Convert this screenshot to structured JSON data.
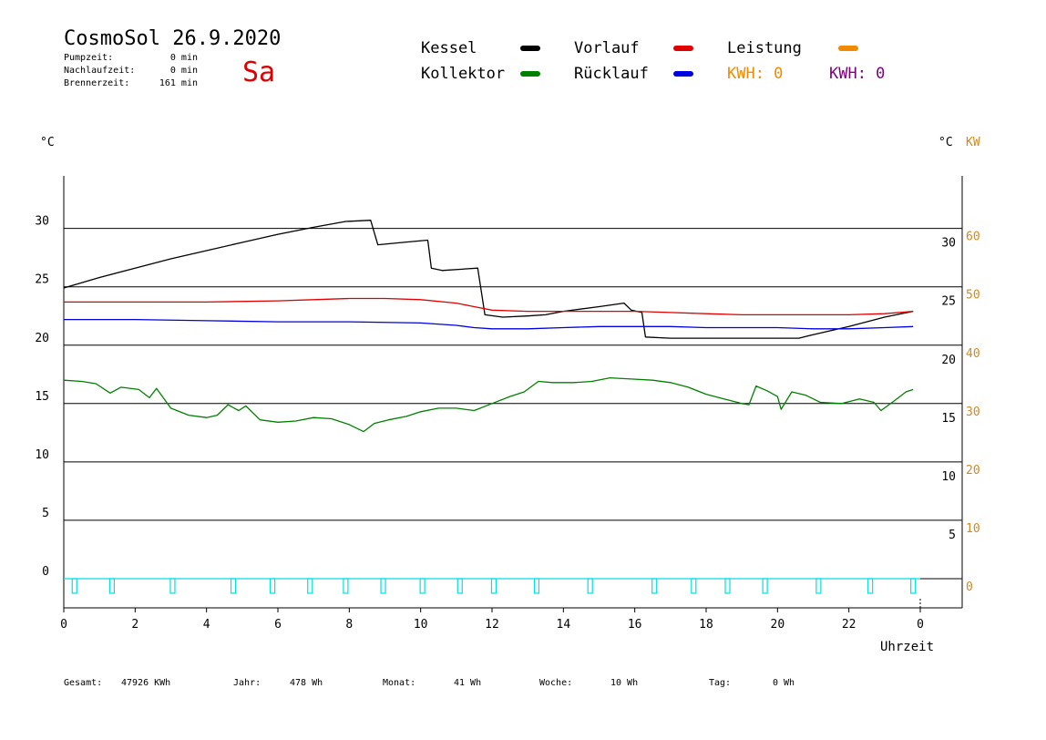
{
  "header": {
    "title": "CosmoSol 26.9.2020",
    "day": "Sa",
    "stats": [
      {
        "label": "Pumpzeit:",
        "value": "0 min"
      },
      {
        "label": "Nachlaufzeit:",
        "value": "0 min"
      },
      {
        "label": "Brennerzeit:",
        "value": "161 min"
      }
    ]
  },
  "legend": {
    "kessel": "Kessel",
    "vorlauf": "Vorlauf",
    "leistung": "Leistung",
    "kollektor": "Kollektor",
    "ruecklauf": "Rücklauf",
    "kwh1": "KWH: 0",
    "kwh2": "KWH: 0"
  },
  "colors": {
    "kessel": "#000000",
    "vorlauf": "#e00000",
    "leistung": "#f08a00",
    "kollektor": "#008000",
    "ruecklauf": "#0000e0",
    "pump": "#00e0e0",
    "kwh2": "#800080"
  },
  "footer": [
    {
      "label": "Gesamt:",
      "value": "47926 KWh"
    },
    {
      "label": "Jahr:",
      "value": "478 Wh"
    },
    {
      "label": "Monat:",
      "value": "41 Wh"
    },
    {
      "label": "Woche:",
      "value": "10 Wh"
    },
    {
      "label": "Tag:",
      "value": "0 Wh"
    }
  ],
  "chart_data": {
    "type": "line",
    "xlabel": "Uhrzeit",
    "ylabel_left": "°C",
    "ylabel_right_temp": "°C",
    "ylabel_right_power": "KW",
    "xlim": [
      0,
      24
    ],
    "ylim": [
      -2.5,
      34.5
    ],
    "x_ticks": [
      "0",
      "2",
      "4",
      "6",
      "8",
      "10",
      "12",
      "14",
      "16",
      "18",
      "20",
      "22",
      "0"
    ],
    "y_ticks_left": [
      "0",
      "5",
      "10",
      "15",
      "20",
      "25",
      "30"
    ],
    "y_ticks_right_temp": [
      "5",
      "10",
      "15",
      "20",
      "25",
      "30"
    ],
    "y_ticks_right_power": [
      "0",
      "10",
      "20",
      "30",
      "40",
      "50",
      "60"
    ],
    "grid": "horizontal",
    "series": [
      {
        "name": "Kessel",
        "points": [
          [
            0,
            24.9
          ],
          [
            1,
            25.8
          ],
          [
            2,
            26.6
          ],
          [
            3,
            27.4
          ],
          [
            4,
            28.1
          ],
          [
            5,
            28.8
          ],
          [
            6,
            29.5
          ],
          [
            7,
            30.1
          ],
          [
            7.9,
            30.6
          ],
          [
            8.6,
            30.7
          ],
          [
            8.8,
            28.6
          ],
          [
            9.5,
            28.8
          ],
          [
            10.2,
            29.0
          ],
          [
            10.3,
            26.6
          ],
          [
            10.6,
            26.4
          ],
          [
            11.6,
            26.6
          ],
          [
            11.8,
            22.6
          ],
          [
            12.3,
            22.4
          ],
          [
            13,
            22.5
          ],
          [
            13.5,
            22.6
          ],
          [
            14,
            22.9
          ],
          [
            15,
            23.3
          ],
          [
            15.7,
            23.6
          ],
          [
            15.9,
            23.0
          ],
          [
            16.2,
            22.8
          ],
          [
            16.3,
            20.7
          ],
          [
            17,
            20.6
          ],
          [
            18,
            20.6
          ],
          [
            19,
            20.6
          ],
          [
            20,
            20.6
          ],
          [
            20.6,
            20.6
          ],
          [
            21,
            20.9
          ],
          [
            22,
            21.6
          ],
          [
            23,
            22.4
          ],
          [
            23.8,
            22.9
          ]
        ]
      },
      {
        "name": "Vorlauf",
        "points": [
          [
            0,
            23.7
          ],
          [
            2,
            23.7
          ],
          [
            4,
            23.7
          ],
          [
            6,
            23.8
          ],
          [
            7,
            23.9
          ],
          [
            8,
            24.0
          ],
          [
            9,
            24.0
          ],
          [
            10,
            23.9
          ],
          [
            11,
            23.6
          ],
          [
            11.5,
            23.3
          ],
          [
            12,
            23.0
          ],
          [
            13,
            22.9
          ],
          [
            14,
            22.9
          ],
          [
            15,
            22.9
          ],
          [
            16,
            22.9
          ],
          [
            17,
            22.8
          ],
          [
            18,
            22.7
          ],
          [
            19,
            22.6
          ],
          [
            20,
            22.6
          ],
          [
            21,
            22.6
          ],
          [
            22,
            22.6
          ],
          [
            23,
            22.7
          ],
          [
            23.8,
            22.9
          ]
        ]
      },
      {
        "name": "Rücklauf",
        "points": [
          [
            0,
            22.2
          ],
          [
            2,
            22.2
          ],
          [
            4,
            22.1
          ],
          [
            6,
            22.0
          ],
          [
            8,
            22.0
          ],
          [
            10,
            21.9
          ],
          [
            11,
            21.7
          ],
          [
            11.5,
            21.5
          ],
          [
            12,
            21.4
          ],
          [
            13,
            21.4
          ],
          [
            14,
            21.5
          ],
          [
            15,
            21.6
          ],
          [
            16,
            21.6
          ],
          [
            17,
            21.6
          ],
          [
            18,
            21.5
          ],
          [
            19,
            21.5
          ],
          [
            20,
            21.5
          ],
          [
            21,
            21.4
          ],
          [
            22,
            21.4
          ],
          [
            23,
            21.5
          ],
          [
            23.8,
            21.6
          ]
        ]
      },
      {
        "name": "Kollektor",
        "points": [
          [
            0,
            17.0
          ],
          [
            0.5,
            16.9
          ],
          [
            0.9,
            16.7
          ],
          [
            1.3,
            15.9
          ],
          [
            1.6,
            16.4
          ],
          [
            2.1,
            16.2
          ],
          [
            2.4,
            15.5
          ],
          [
            2.6,
            16.3
          ],
          [
            3.0,
            14.6
          ],
          [
            3.5,
            14.0
          ],
          [
            4.0,
            13.8
          ],
          [
            4.3,
            14.0
          ],
          [
            4.6,
            14.9
          ],
          [
            4.9,
            14.4
          ],
          [
            5.1,
            14.8
          ],
          [
            5.5,
            13.6
          ],
          [
            6.0,
            13.4
          ],
          [
            6.5,
            13.5
          ],
          [
            7.0,
            13.8
          ],
          [
            7.5,
            13.7
          ],
          [
            8.0,
            13.2
          ],
          [
            8.4,
            12.6
          ],
          [
            8.7,
            13.3
          ],
          [
            9.1,
            13.6
          ],
          [
            9.6,
            13.9
          ],
          [
            10.0,
            14.3
          ],
          [
            10.5,
            14.6
          ],
          [
            11.0,
            14.6
          ],
          [
            11.5,
            14.4
          ],
          [
            12.0,
            15.0
          ],
          [
            12.5,
            15.6
          ],
          [
            12.9,
            16.0
          ],
          [
            13.3,
            16.9
          ],
          [
            13.7,
            16.8
          ],
          [
            14.3,
            16.8
          ],
          [
            14.8,
            16.9
          ],
          [
            15.3,
            17.2
          ],
          [
            15.9,
            17.1
          ],
          [
            16.5,
            17.0
          ],
          [
            17.0,
            16.8
          ],
          [
            17.5,
            16.4
          ],
          [
            18.0,
            15.8
          ],
          [
            18.5,
            15.4
          ],
          [
            19.0,
            15.0
          ],
          [
            19.2,
            14.9
          ],
          [
            19.4,
            16.5
          ],
          [
            19.7,
            16.1
          ],
          [
            20.0,
            15.6
          ],
          [
            20.1,
            14.5
          ],
          [
            20.4,
            16.0
          ],
          [
            20.8,
            15.7
          ],
          [
            21.2,
            15.1
          ],
          [
            21.8,
            15.0
          ],
          [
            22.3,
            15.4
          ],
          [
            22.7,
            15.1
          ],
          [
            22.9,
            14.4
          ],
          [
            23.3,
            15.3
          ],
          [
            23.6,
            16.0
          ],
          [
            23.8,
            16.2
          ]
        ]
      },
      {
        "name": "Pumpe",
        "baseline": 0,
        "pulses": [
          0.3,
          1.35,
          3.05,
          4.75,
          5.85,
          6.9,
          7.9,
          8.95,
          10.05,
          11.1,
          12.05,
          13.25,
          14.75,
          16.55,
          17.65,
          18.6,
          19.65,
          21.15,
          22.6,
          23.8
        ]
      }
    ]
  }
}
